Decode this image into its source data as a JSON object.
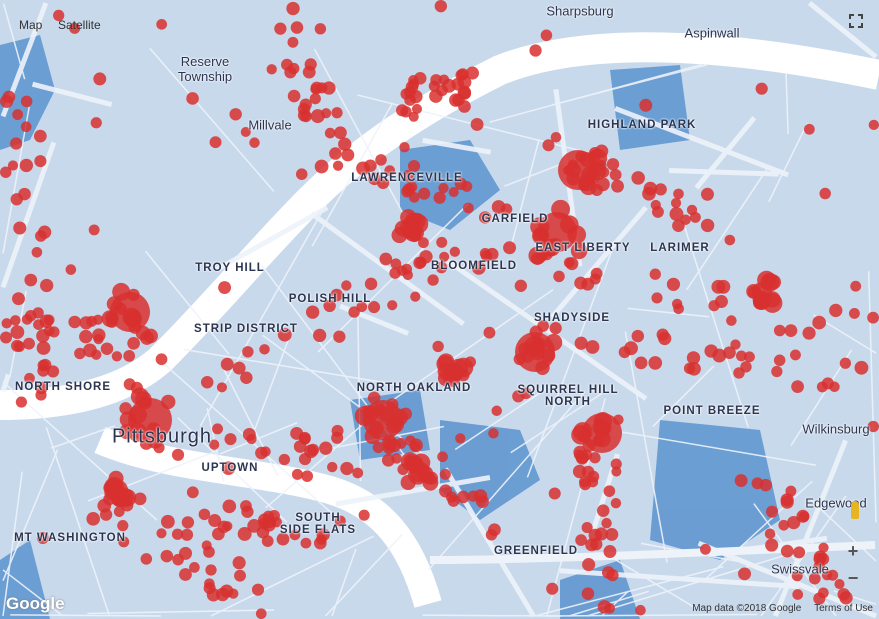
{
  "map_type_controls": {
    "map": "Map",
    "satellite": "Satellite"
  },
  "labels": {
    "sharpsburg": "Sharpsburg",
    "aspinwall": "Aspinwall",
    "reserve": "Reserve Township",
    "millvale": "Millvale",
    "highland_park": "HIGHLAND PARK",
    "lawrenceville": "LAWRENCEVILLE",
    "garfield": "GARFIELD",
    "east_liberty": "EAST LIBERTY",
    "larimer": "LARIMER",
    "troy_hill": "TROY HILL",
    "bloomfield": "BLOOMFIELD",
    "polish_hill": "POLISH HILL",
    "strip_district": "STRIP DISTRICT",
    "shadyside": "SHADYSIDE",
    "north_shore": "NORTH SHORE",
    "north_oakland": "NORTH OAKLAND",
    "squirrel_hill_north": "SQUIRREL HILL NORTH",
    "point_breeze": "POINT BREEZE",
    "wilkinsburg": "Wilkinsburg",
    "pittsburgh": "Pittsburgh",
    "uptown": "UPTOWN",
    "edgewood": "Edgewood",
    "mt_washington": "MT WASHINGTON",
    "south_side_flats": "SOUTH SIDE FLATS",
    "greenfield": "GREENFIELD",
    "swissvale": "Swissvale"
  },
  "controls": {
    "zoom_in": "+",
    "zoom_out": "−",
    "fullscreen_icon": "fullscreen-icon",
    "pegman_icon": "pegman-icon"
  },
  "logo": "Google",
  "attribution": {
    "data": "Map data ©2018 Google",
    "terms": "Terms of Use"
  },
  "colors": {
    "land": "#c9d9ec",
    "water": "#5b93cf",
    "road": "#eef3fa",
    "marker": "#d8302f"
  }
}
